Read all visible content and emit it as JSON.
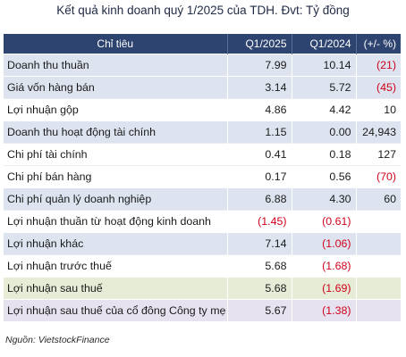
{
  "title": "Kết quả kinh doanh quý 1/2025 của TDH. Đvt: Tỷ đồng",
  "headers": {
    "indicator": "Chỉ tiêu",
    "q1_2025": "Q1/2025",
    "q1_2024": "Q1/2024",
    "change": "(+/- %)"
  },
  "rows": [
    {
      "label": "Doanh thu thuần",
      "q1_2025": "7.99",
      "q1_2024": "10.14",
      "change": "(21)"
    },
    {
      "label": "Giá vốn hàng bán",
      "q1_2025": "3.14",
      "q1_2024": "5.72",
      "change": "(45)"
    },
    {
      "label": "Lợi nhuận gộp",
      "q1_2025": "4.86",
      "q1_2024": "4.42",
      "change": "10"
    },
    {
      "label": "Doanh thu hoạt động tài chính",
      "q1_2025": "1.15",
      "q1_2024": "0.00",
      "change": "24,943"
    },
    {
      "label": "Chi phí tài chính",
      "q1_2025": "0.41",
      "q1_2024": "0.18",
      "change": "127"
    },
    {
      "label": "Chi phí bán hàng",
      "q1_2025": "0.17",
      "q1_2024": "0.56",
      "change": "(70)"
    },
    {
      "label": "Chi phí quản lý doanh nghiệp",
      "q1_2025": "6.88",
      "q1_2024": "4.30",
      "change": "60"
    },
    {
      "label": "Lợi nhuận thuần từ hoạt động kinh doanh",
      "q1_2025": "(1.45)",
      "q1_2024": "(0.61)",
      "change": ""
    },
    {
      "label": "Lợi nhuận khác",
      "q1_2025": "7.14",
      "q1_2024": "(1.06)",
      "change": ""
    },
    {
      "label": "Lợi nhuận trước thuế",
      "q1_2025": "5.68",
      "q1_2024": "(1.68)",
      "change": ""
    },
    {
      "label": "Lợi nhuận sau thuế",
      "q1_2025": "5.68",
      "q1_2024": "(1.69)",
      "change": ""
    },
    {
      "label": "Lợi nhuận sau thuế của cổ đông Công ty mẹ",
      "q1_2025": "5.67",
      "q1_2024": "(1.38)",
      "change": ""
    }
  ],
  "source": "Nguồn: VietstockFinance",
  "colors": {
    "header_bg": "#2e4470",
    "alt_row_bg": "#dde4f0",
    "highlight_green": "#e6ecd6",
    "highlight_purple": "#e6e2ef",
    "negative_text": "#d0021b"
  }
}
